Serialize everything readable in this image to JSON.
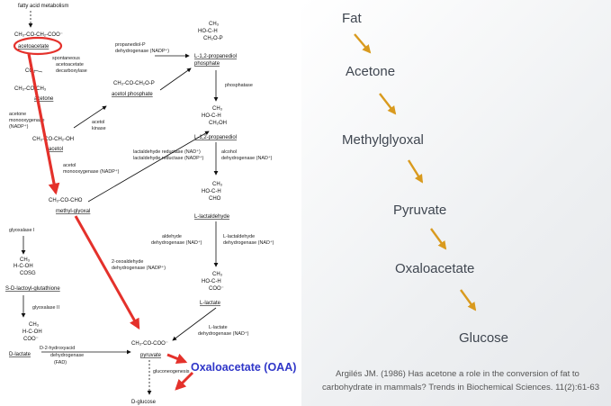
{
  "diagram": {
    "fatty_acid_metabolism": "fatty acid metabolism",
    "acetoacetate_formula": "CH₃-CO-CH₂-COO⁻",
    "acetoacetate": "acetoacetate",
    "spontaneous": "spontaneous",
    "acetoacetate_word": "acetoacetate",
    "decarboxylase": "decarboxylase",
    "co2": "CO₂",
    "acetone_formula": "CH₃-CO-CH₃",
    "acetone": "acetone",
    "monooxygenase": "monooxygenase",
    "nadp": "(NADP⁺)",
    "acetol_formula": "CH₃-CO-CH₂-OH",
    "acetol_short": "acetol",
    "acetol": "acetol",
    "kinase": "kinase",
    "monooxygenase_nadp": "monooxygenase (NADP⁺)",
    "methylglyoxal_formula": "CH₃-CO-CHO",
    "methylglyoxal": "methyl-glyoxal",
    "glyoxalase1": "glyoxalase I",
    "glyoxalase2": "glyoxalase II",
    "ch3": "CH₃",
    "hcoh": "H-C-OH",
    "hoch": "HO-C-H",
    "cosg": "COSG",
    "coo_minus": "COO⁻",
    "ch2o_p": "CH₂O-P",
    "ch2oh": "CH₂OH",
    "cho": "CHO",
    "lactoylglutathione": "S-D-lactoyl-glutathione",
    "d_lactate": "D-lactate",
    "d2_hydroxyacid": "D-2-hydroxyacid",
    "dehydrogenase": "dehydrogenase",
    "fad": "(FAD)",
    "propanediol_p": "propanediol-P",
    "dehydrogenase_nadp": "dehydrogenase (NADP⁺)",
    "acetol_phosphate_formula": "CH₃-CO-CH₂O-P",
    "acetol_phosphate": "acetol phosphate",
    "propanediol_phosphate": "L-1,2-propanediol",
    "phosphate": "phosphate",
    "phosphatase": "phosphatase",
    "propanediol": "L-1,2-propanediol",
    "lactaldehyde_reductase": "lactaldehyde reductase (NAD⁺)",
    "lactaldehyde_reductase_nadph": "lactaldehyde reductase (NADP⁺)",
    "alcohol": "alcohol",
    "dehydrogenase_nad": "dehydrogenase (NAD⁺)",
    "l_lactaldehyde": "L-lactaldehyde",
    "aldehyde": "aldehyde",
    "l_lactate": "L-lactate",
    "pyruvate_formula": "CH₃-CO-COO⁻",
    "pyruvate": "pyruvate",
    "oxoaldehyde": "2-oxoaldehyde",
    "gluconeogenesis": "gluconeogenesis",
    "d_glucose": "D-glucose",
    "oaa": "Oxaloacetate (OAA)"
  },
  "flow": [
    "Fat",
    "Acetone",
    "Methylglyoxal",
    "Pyruvate",
    "Oxaloacetate",
    "Glucose"
  ],
  "citation": {
    "line1": "Argilés JM. (1986) Has acetone a role in the conversion of fat to",
    "line2": "carbohydrate in mammals? Trends in Biochemical Sciences. 11(2):61-63"
  },
  "colors": {
    "highlight_red": "#e4312b",
    "flow_arrow": "#d99a1e",
    "oaa_label": "#2f36c8",
    "flow_text": "#3f4650"
  }
}
